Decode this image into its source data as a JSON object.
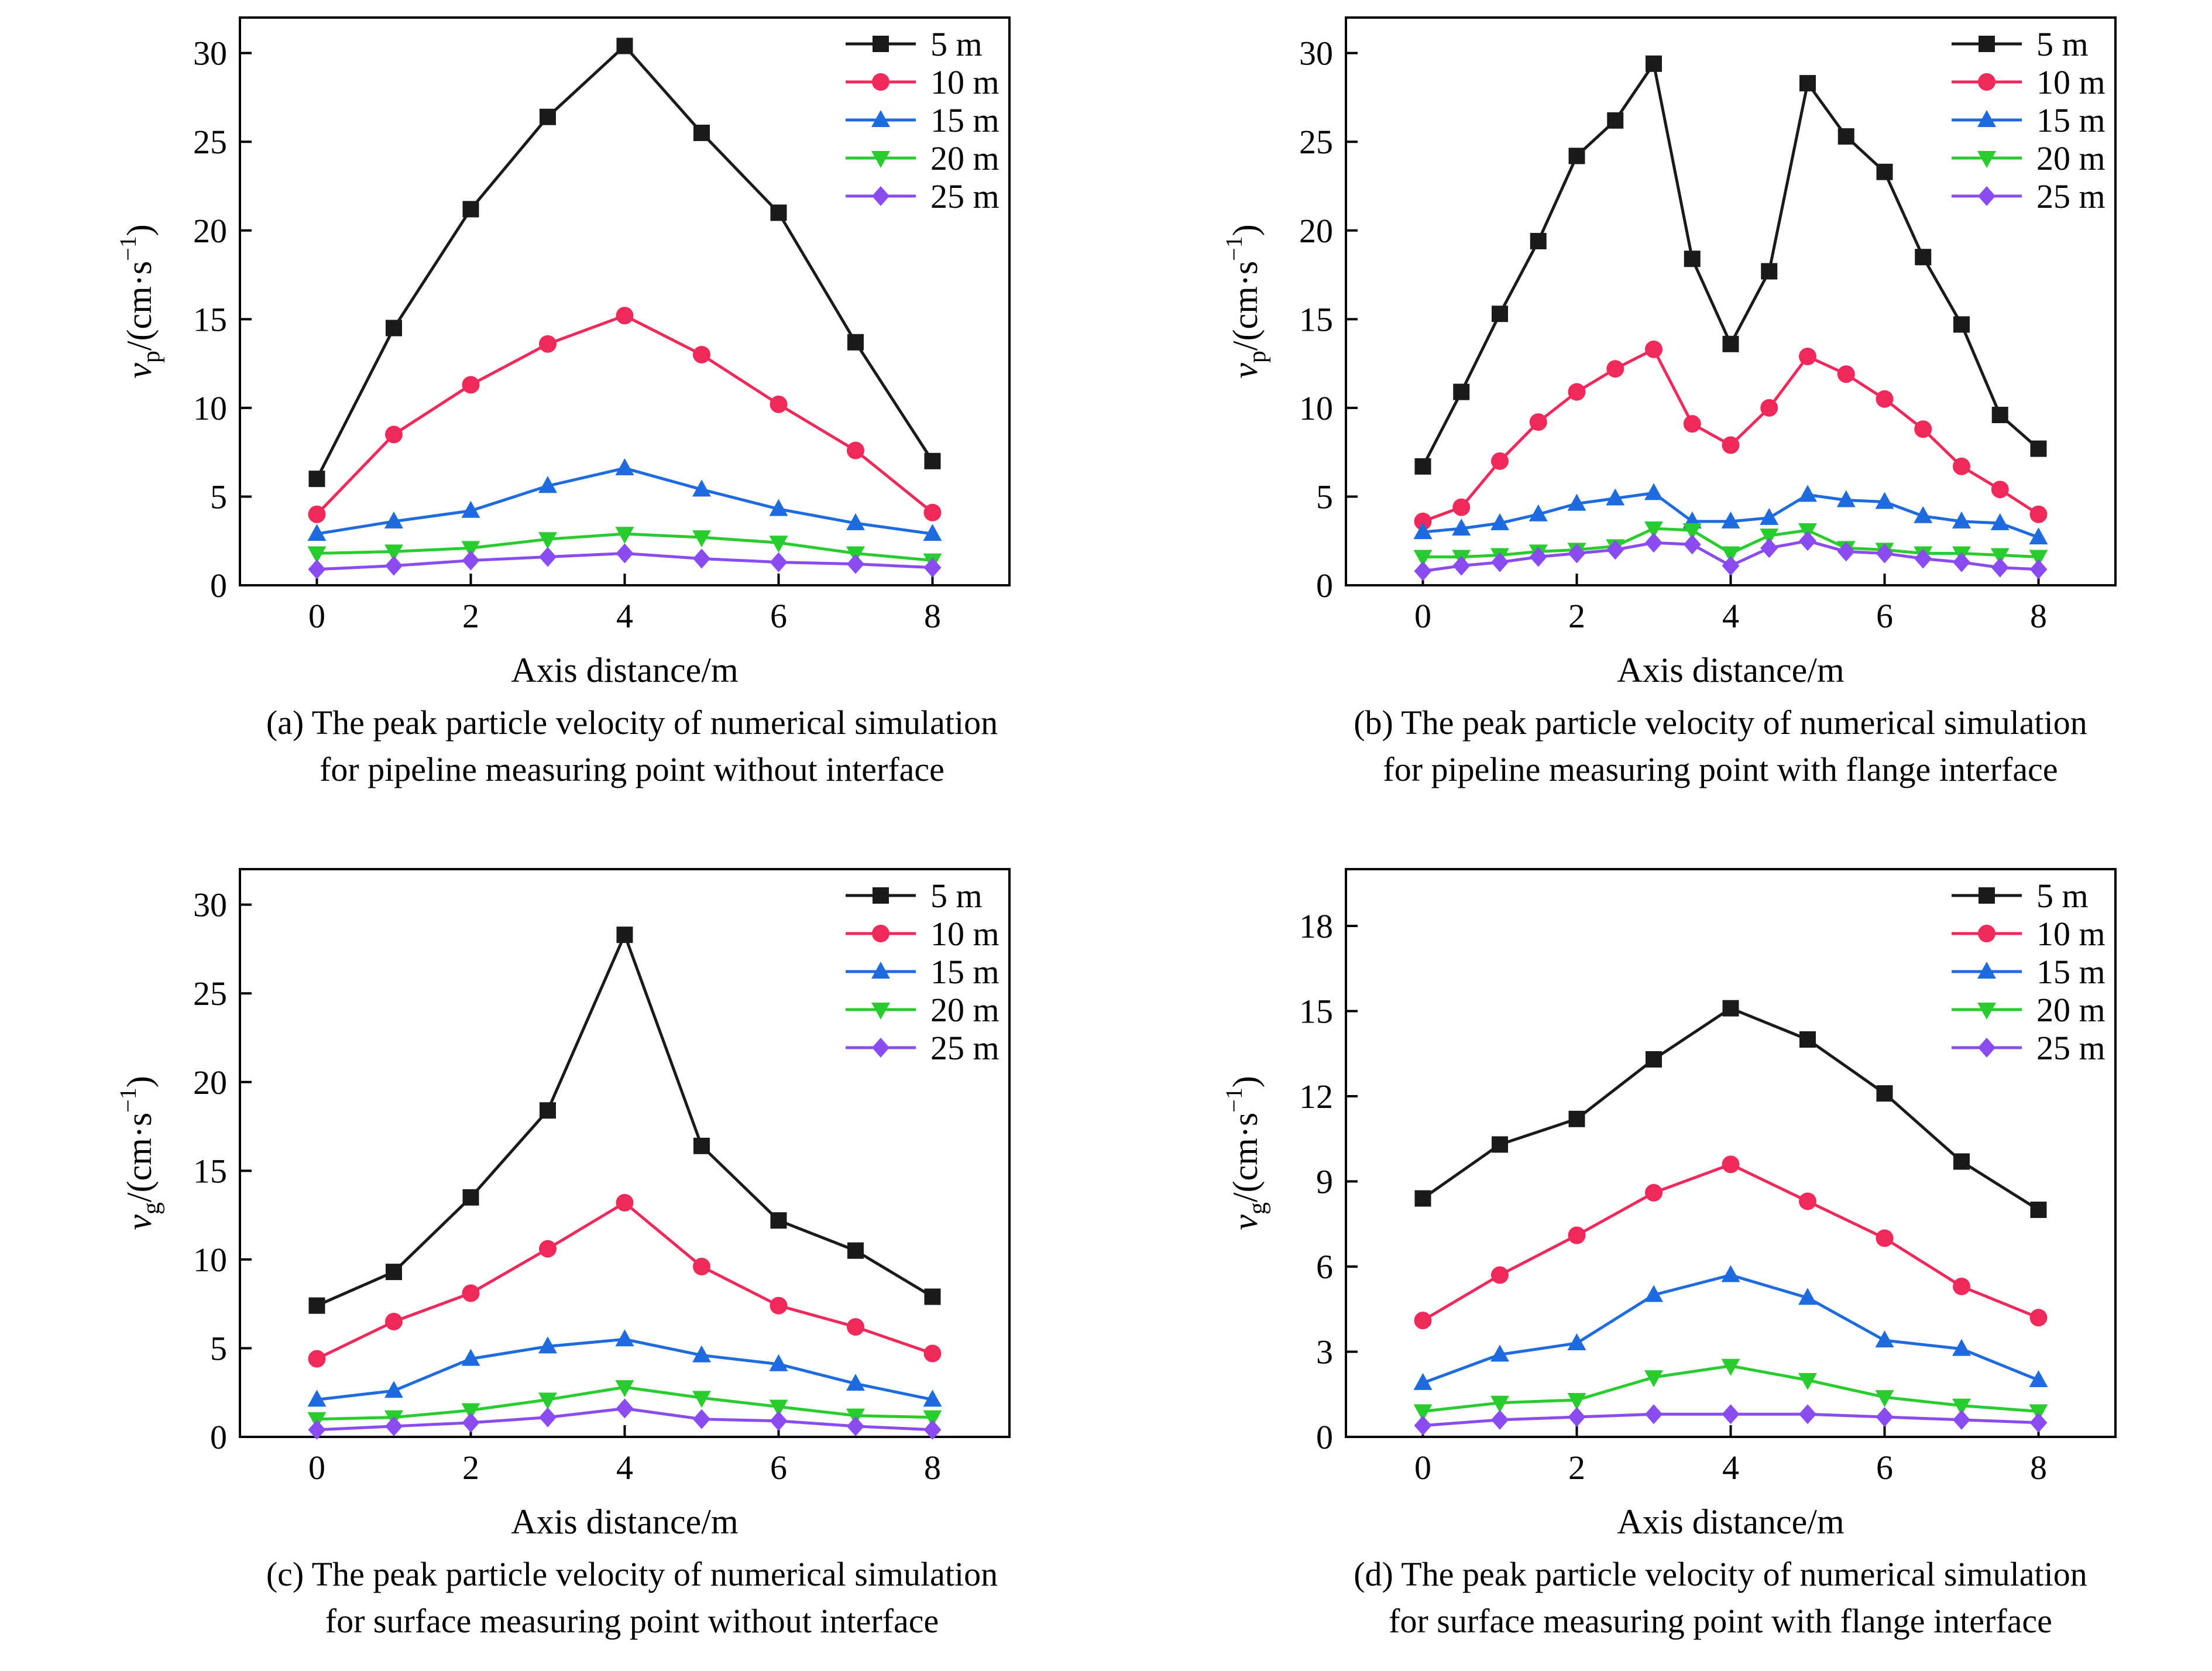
{
  "axis_xlabel": "Axis distance/m",
  "colors": {
    "5 m": "#1a1a1a",
    "10 m": "#f0295b",
    "15 m": "#1e6be0",
    "20 m": "#29cc2e",
    "25 m": "#8a4cf0"
  },
  "chart_data": [
    {
      "type": "line",
      "caption": [
        "(a) The peak particle velocity of numerical simulation",
        "for pipeline measuring point without interface"
      ],
      "xlabel": "Axis distance/m",
      "ylabel_main": "v",
      "ylabel_sub": "p",
      "ylabel_rest": "/(cm·s",
      "xlim": [
        -1,
        9
      ],
      "ylim": [
        0,
        32
      ],
      "xticks": [
        0,
        2,
        4,
        6,
        8
      ],
      "yticks": [
        0,
        5,
        10,
        15,
        20,
        25,
        30
      ],
      "legend": "top-right",
      "series": [
        {
          "name": "5 m",
          "marker": "square",
          "x": [
            0,
            1,
            2,
            3,
            4,
            5,
            6,
            7,
            8
          ],
          "values": [
            6.0,
            14.5,
            21.2,
            26.4,
            30.4,
            25.5,
            21.0,
            13.7,
            7.0
          ]
        },
        {
          "name": "10 m",
          "marker": "circle",
          "x": [
            0,
            1,
            2,
            3,
            4,
            5,
            6,
            7,
            8
          ],
          "values": [
            4.0,
            8.5,
            11.3,
            13.6,
            15.2,
            13.0,
            10.2,
            7.6,
            4.1
          ]
        },
        {
          "name": "15 m",
          "marker": "triangle-up",
          "x": [
            0,
            1,
            2,
            3,
            4,
            5,
            6,
            7,
            8
          ],
          "values": [
            2.9,
            3.6,
            4.2,
            5.6,
            6.6,
            5.4,
            4.3,
            3.5,
            2.9
          ]
        },
        {
          "name": "20 m",
          "marker": "triangle-down",
          "x": [
            0,
            1,
            2,
            3,
            4,
            5,
            6,
            7,
            8
          ],
          "values": [
            1.8,
            1.9,
            2.1,
            2.6,
            2.9,
            2.7,
            2.4,
            1.8,
            1.4
          ]
        },
        {
          "name": "25 m",
          "marker": "diamond",
          "x": [
            0,
            1,
            2,
            3,
            4,
            5,
            6,
            7,
            8
          ],
          "values": [
            0.9,
            1.1,
            1.4,
            1.6,
            1.8,
            1.5,
            1.3,
            1.2,
            1.0
          ]
        }
      ]
    },
    {
      "type": "line",
      "caption": [
        "(b) The peak particle velocity of numerical simulation",
        "for pipeline measuring point with flange interface"
      ],
      "xlabel": "Axis distance/m",
      "ylabel_main": "v",
      "ylabel_sub": "p",
      "ylabel_rest": "/(cm·s",
      "xlim": [
        -1,
        9
      ],
      "ylim": [
        0,
        32
      ],
      "xticks": [
        0,
        2,
        4,
        6,
        8
      ],
      "yticks": [
        0,
        5,
        10,
        15,
        20,
        25,
        30
      ],
      "legend": "top-right",
      "series": [
        {
          "name": "5 m",
          "marker": "square",
          "x": [
            0,
            0.5,
            1,
            1.5,
            2,
            2.5,
            3,
            3.5,
            4,
            4.5,
            5,
            5.5,
            6,
            6.5,
            7,
            7.5,
            8
          ],
          "values": [
            6.7,
            10.9,
            15.3,
            19.4,
            24.2,
            26.2,
            29.4,
            18.4,
            13.6,
            17.7,
            28.3,
            25.3,
            23.3,
            18.5,
            14.7,
            9.6,
            7.7
          ]
        },
        {
          "name": "10 m",
          "marker": "circle",
          "x": [
            0,
            0.5,
            1,
            1.5,
            2,
            2.5,
            3,
            3.5,
            4,
            4.5,
            5,
            5.5,
            6,
            6.5,
            7,
            7.5,
            8
          ],
          "values": [
            3.6,
            4.4,
            7.0,
            9.2,
            10.9,
            12.2,
            13.3,
            9.1,
            7.9,
            10.0,
            12.9,
            11.9,
            10.5,
            8.8,
            6.7,
            5.4,
            4.0
          ]
        },
        {
          "name": "15 m",
          "marker": "triangle-up",
          "x": [
            0,
            0.5,
            1,
            1.5,
            2,
            2.5,
            3,
            3.5,
            4,
            4.5,
            5,
            5.5,
            6,
            6.5,
            7,
            7.5,
            8
          ],
          "values": [
            3.0,
            3.2,
            3.5,
            4.0,
            4.6,
            4.9,
            5.2,
            3.6,
            3.6,
            3.8,
            5.1,
            4.8,
            4.7,
            3.9,
            3.6,
            3.5,
            2.7
          ]
        },
        {
          "name": "20 m",
          "marker": "triangle-down",
          "x": [
            0,
            0.5,
            1,
            1.5,
            2,
            2.5,
            3,
            3.5,
            4,
            4.5,
            5,
            5.5,
            6,
            6.5,
            7,
            7.5,
            8
          ],
          "values": [
            1.6,
            1.6,
            1.7,
            1.9,
            2.0,
            2.2,
            3.2,
            3.1,
            1.8,
            2.8,
            3.1,
            2.1,
            2.0,
            1.8,
            1.8,
            1.7,
            1.6
          ]
        },
        {
          "name": "25 m",
          "marker": "diamond",
          "x": [
            0,
            0.5,
            1,
            1.5,
            2,
            2.5,
            3,
            3.5,
            4,
            4.5,
            5,
            5.5,
            6,
            6.5,
            7,
            7.5,
            8
          ],
          "values": [
            0.8,
            1.1,
            1.3,
            1.6,
            1.8,
            2.0,
            2.4,
            2.3,
            1.1,
            2.1,
            2.5,
            1.9,
            1.8,
            1.5,
            1.3,
            1.0,
            0.9
          ]
        }
      ]
    },
    {
      "type": "line",
      "caption": [
        "(c) The peak particle velocity of numerical simulation",
        "for surface measuring point without interface"
      ],
      "xlabel": "Axis distance/m",
      "ylabel_main": "v",
      "ylabel_sub": "g",
      "ylabel_rest": "/(cm·s",
      "xlim": [
        -1,
        9
      ],
      "ylim": [
        0,
        32
      ],
      "xticks": [
        0,
        2,
        4,
        6,
        8
      ],
      "yticks": [
        0,
        5,
        10,
        15,
        20,
        25,
        30
      ],
      "legend": "top-right",
      "series": [
        {
          "name": "5 m",
          "marker": "square",
          "x": [
            0,
            1,
            2,
            3,
            4,
            5,
            6,
            7,
            8
          ],
          "values": [
            7.4,
            9.3,
            13.5,
            18.4,
            28.3,
            16.4,
            12.2,
            10.5,
            7.9
          ]
        },
        {
          "name": "10 m",
          "marker": "circle",
          "x": [
            0,
            1,
            2,
            3,
            4,
            5,
            6,
            7,
            8
          ],
          "values": [
            4.4,
            6.5,
            8.1,
            10.6,
            13.2,
            9.6,
            7.4,
            6.2,
            4.7
          ]
        },
        {
          "name": "15 m",
          "marker": "triangle-up",
          "x": [
            0,
            1,
            2,
            3,
            4,
            5,
            6,
            7,
            8
          ],
          "values": [
            2.1,
            2.6,
            4.4,
            5.1,
            5.5,
            4.6,
            4.1,
            3.0,
            2.1
          ]
        },
        {
          "name": "20 m",
          "marker": "triangle-down",
          "x": [
            0,
            1,
            2,
            3,
            4,
            5,
            6,
            7,
            8
          ],
          "values": [
            1.0,
            1.1,
            1.5,
            2.1,
            2.8,
            2.2,
            1.7,
            1.2,
            1.1
          ]
        },
        {
          "name": "25 m",
          "marker": "diamond",
          "x": [
            0,
            1,
            2,
            3,
            4,
            5,
            6,
            7,
            8
          ],
          "values": [
            0.4,
            0.6,
            0.8,
            1.1,
            1.6,
            1.0,
            0.9,
            0.6,
            0.4
          ]
        }
      ]
    },
    {
      "type": "line",
      "caption": [
        "(d) The peak particle velocity of numerical simulation",
        "for surface measuring point with flange interface"
      ],
      "xlabel": "Axis distance/m",
      "ylabel_main": "v",
      "ylabel_sub": "g",
      "ylabel_rest": "/(cm·s",
      "xlim": [
        -1,
        9
      ],
      "ylim": [
        0,
        20
      ],
      "xticks": [
        0,
        2,
        4,
        6,
        8
      ],
      "yticks": [
        0,
        3,
        6,
        9,
        12,
        15,
        18
      ],
      "legend": "top-right",
      "series": [
        {
          "name": "5 m",
          "marker": "square",
          "x": [
            0,
            1,
            2,
            3,
            4,
            5,
            6,
            7,
            8
          ],
          "values": [
            8.4,
            10.3,
            11.2,
            13.3,
            15.1,
            14.0,
            12.1,
            9.7,
            8.0
          ]
        },
        {
          "name": "10 m",
          "marker": "circle",
          "x": [
            0,
            1,
            2,
            3,
            4,
            5,
            6,
            7,
            8
          ],
          "values": [
            4.1,
            5.7,
            7.1,
            8.6,
            9.6,
            8.3,
            7.0,
            5.3,
            4.2
          ]
        },
        {
          "name": "15 m",
          "marker": "triangle-up",
          "x": [
            0,
            1,
            2,
            3,
            4,
            5,
            6,
            7,
            8
          ],
          "values": [
            1.9,
            2.9,
            3.3,
            5.0,
            5.7,
            4.9,
            3.4,
            3.1,
            2.0
          ]
        },
        {
          "name": "20 m",
          "marker": "triangle-down",
          "x": [
            0,
            1,
            2,
            3,
            4,
            5,
            6,
            7,
            8
          ],
          "values": [
            0.9,
            1.2,
            1.3,
            2.1,
            2.5,
            2.0,
            1.4,
            1.1,
            0.9
          ]
        },
        {
          "name": "25 m",
          "marker": "diamond",
          "x": [
            0,
            1,
            2,
            3,
            4,
            5,
            6,
            7,
            8
          ],
          "values": [
            0.4,
            0.6,
            0.7,
            0.8,
            0.8,
            0.8,
            0.7,
            0.6,
            0.5
          ]
        }
      ]
    }
  ]
}
